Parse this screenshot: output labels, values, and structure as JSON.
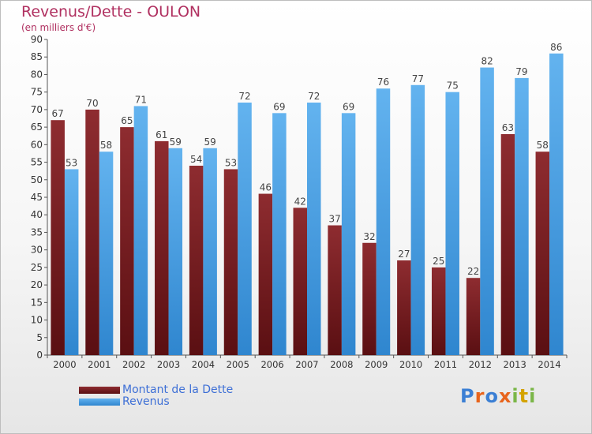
{
  "chart_data": {
    "type": "bar",
    "title": "Revenus/Dette - OULON",
    "subtitle": "(en milliers d'€)",
    "categories": [
      "2000",
      "2001",
      "2002",
      "2003",
      "2004",
      "2005",
      "2006",
      "2007",
      "2008",
      "2009",
      "2010",
      "2011",
      "2012",
      "2013",
      "2014"
    ],
    "series": [
      {
        "name": "Montant de la Dette",
        "color": "#7a1e22",
        "values": [
          67,
          70,
          65,
          61,
          54,
          53,
          46,
          42,
          37,
          32,
          27,
          25,
          22,
          63,
          58
        ]
      },
      {
        "name": "Revenus",
        "color": "#4da3e6",
        "values": [
          53,
          58,
          71,
          59,
          59,
          72,
          69,
          72,
          69,
          76,
          77,
          75,
          82,
          79,
          86
        ]
      }
    ],
    "ylim": [
      0,
      90
    ],
    "yticks": [
      0,
      5,
      10,
      15,
      20,
      25,
      30,
      35,
      40,
      45,
      50,
      55,
      60,
      65,
      70,
      75,
      80,
      85,
      90
    ],
    "grid": false,
    "legend_position": "bottom-left",
    "data_labels": true
  },
  "brand": {
    "text": "Proxiti",
    "colors": [
      "#3b7fd4",
      "#e8641c",
      "#7ab648",
      "#d4a300"
    ]
  }
}
